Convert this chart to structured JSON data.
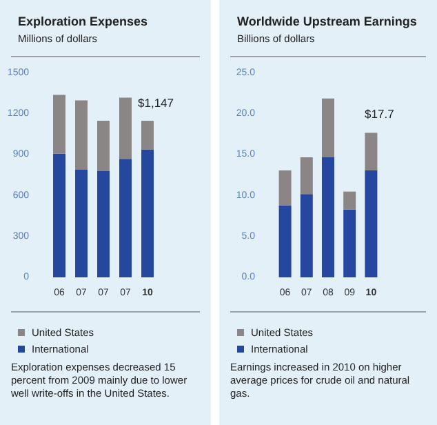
{
  "chart_data": [
    {
      "type": "bar",
      "title": "Exploration Expenses",
      "subtitle": "Millions of dollars",
      "categories": [
        "06",
        "07",
        "07",
        "07",
        "10"
      ],
      "stacked": true,
      "series": [
        {
          "name": "International",
          "color": "#2547a0",
          "values": [
            910,
            790,
            780,
            870,
            940
          ]
        },
        {
          "name": "United States",
          "color": "#8c8585",
          "values": [
            430,
            510,
            370,
            450,
            210
          ]
        }
      ],
      "ylim": [
        0,
        1500
      ],
      "yticks": [
        0,
        300,
        600,
        900,
        1200,
        1500
      ],
      "grid": false,
      "legend": "bottom",
      "annotations": [
        {
          "text": "$1,147",
          "x": "10",
          "y": 1147
        },
        "Exploration expenses decreased 15 percent from 2009 mainly due to lower well write-offs in the United States."
      ]
    },
    {
      "type": "bar",
      "title": "Worldwide Upstream Earnings",
      "subtitle": "Billions of dollars",
      "categories": [
        "06",
        "07",
        "08",
        "09",
        "10"
      ],
      "stacked": true,
      "series": [
        {
          "name": "International",
          "color": "#2547a0",
          "values": [
            8.8,
            10.2,
            14.7,
            8.3,
            13.1
          ]
        },
        {
          "name": "United States",
          "color": "#8c8585",
          "values": [
            4.3,
            4.5,
            7.2,
            2.2,
            4.6
          ]
        }
      ],
      "ylim": [
        0,
        25
      ],
      "yticks": [
        {
          "value": 0,
          "label": "0.0"
        },
        {
          "value": 5,
          "label": "5.0"
        },
        {
          "value": 10,
          "label": "10.0"
        },
        {
          "value": 15,
          "label": "15.0"
        },
        {
          "value": 20,
          "label": "20.0"
        },
        {
          "value": 25,
          "label": "25.0"
        }
      ],
      "grid": false,
      "legend": "bottom",
      "annotations": [
        {
          "text": "$17.7",
          "x": "10",
          "y": 17.7
        },
        "Earnings increased in 2010 on higher average prices for crude oil and natural gas."
      ]
    }
  ]
}
